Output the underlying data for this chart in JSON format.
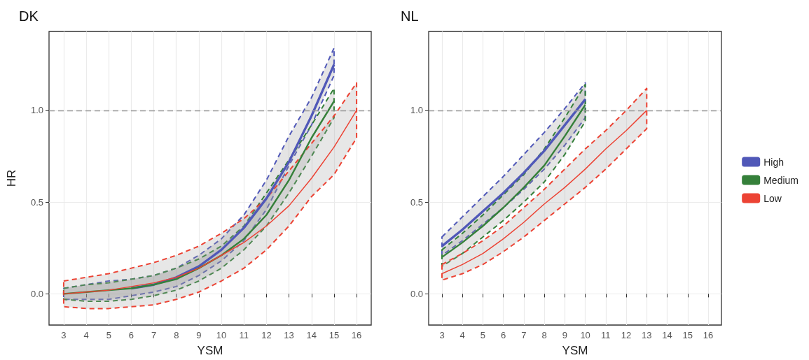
{
  "chart_data": [
    {
      "type": "line",
      "title": "DK",
      "xlabel": "YSM",
      "ylabel": "HR",
      "x": [
        3,
        4,
        5,
        6,
        7,
        8,
        9,
        10,
        11,
        12,
        13,
        14,
        15,
        16
      ],
      "xlim": [
        2.35,
        16.65
      ],
      "ylim": [
        -0.17,
        1.43
      ],
      "xticks": [
        3,
        4,
        5,
        6,
        7,
        8,
        9,
        10,
        11,
        12,
        13,
        14,
        15,
        16
      ],
      "yticks": [
        {
          "value": 0,
          "label": "0.0"
        },
        {
          "value": 0.5,
          "label": "0.5"
        },
        {
          "value": 1,
          "label": "1.0"
        }
      ],
      "grid": true,
      "legend": false,
      "marker": "none",
      "line_style": "solid",
      "ref_lines": [
        {
          "axis": "y",
          "value": 1,
          "color": "#999999",
          "line_style": "dashed"
        }
      ],
      "series": [
        {
          "color": "#5058b8",
          "values": [
            null,
            null,
            null,
            0.03,
            0.05,
            0.09,
            0.15,
            0.24,
            0.36,
            0.52,
            0.72,
            0.97,
            1.25,
            null
          ],
          "lower": [
            -0.03,
            -0.03,
            -0.03,
            -0.01,
            0.01,
            0.04,
            0.1,
            0.18,
            0.29,
            0.46,
            0.7,
            0.92,
            1.19,
            null
          ],
          "upper": [
            0.03,
            0.05,
            0.07,
            0.08,
            0.1,
            0.14,
            0.21,
            0.3,
            0.43,
            0.62,
            0.86,
            1.07,
            1.34,
            null
          ]
        },
        {
          "color": "#35803a",
          "values": [
            0.0,
            0.01,
            0.02,
            0.03,
            0.05,
            0.08,
            0.14,
            0.21,
            0.3,
            0.43,
            0.62,
            0.85,
            1.05,
            null
          ],
          "lower": [
            -0.03,
            -0.04,
            -0.04,
            -0.03,
            -0.01,
            0.02,
            0.07,
            0.14,
            0.24,
            0.37,
            0.55,
            0.75,
            0.96,
            null
          ],
          "upper": [
            0.03,
            0.05,
            0.06,
            0.08,
            0.1,
            0.14,
            0.19,
            0.26,
            0.37,
            0.55,
            0.73,
            0.92,
            1.12,
            null
          ]
        },
        {
          "color": "#ec4334",
          "values": [
            0.0,
            0.01,
            0.02,
            0.04,
            0.06,
            0.09,
            0.14,
            0.21,
            0.28,
            0.37,
            0.48,
            0.63,
            0.8,
            1.0
          ],
          "lower": [
            -0.07,
            -0.08,
            -0.08,
            -0.07,
            -0.06,
            -0.03,
            0.01,
            0.07,
            0.14,
            0.24,
            0.37,
            0.53,
            0.65,
            0.85
          ],
          "upper": [
            0.07,
            0.09,
            0.11,
            0.14,
            0.17,
            0.21,
            0.26,
            0.33,
            0.41,
            0.52,
            0.67,
            0.82,
            0.97,
            1.15
          ]
        }
      ]
    },
    {
      "type": "line",
      "title": "NL",
      "xlabel": "YSM",
      "x": [
        3,
        4,
        5,
        6,
        7,
        8,
        9,
        10,
        11,
        12,
        13
      ],
      "xlim": [
        2.35,
        16.65
      ],
      "ylim": [
        -0.17,
        1.43
      ],
      "xticks": [
        3,
        4,
        5,
        6,
        7,
        8,
        9,
        10,
        11,
        12,
        13,
        14,
        15,
        16
      ],
      "yticks": [
        {
          "value": 0,
          "label": "0.0"
        },
        {
          "value": 0.5,
          "label": "0.5"
        },
        {
          "value": 1,
          "label": "1.0"
        }
      ],
      "grid": true,
      "legend": "right",
      "marker": "none",
      "line_style": "solid",
      "ref_lines": [
        {
          "axis": "y",
          "value": 1,
          "color": "#999999",
          "line_style": "dashed"
        }
      ],
      "series": [
        {
          "name": "High",
          "color": "#5058b8",
          "values": [
            0.26,
            0.35,
            0.45,
            0.55,
            0.66,
            0.78,
            0.92,
            1.06,
            null,
            null,
            null
          ],
          "lower": [
            0.21,
            0.29,
            0.38,
            0.47,
            0.57,
            0.68,
            0.81,
            0.96,
            null,
            null,
            null
          ],
          "upper": [
            0.31,
            0.42,
            0.53,
            0.64,
            0.76,
            0.88,
            1.01,
            1.15,
            null,
            null,
            null
          ]
        },
        {
          "name": "Medium",
          "color": "#35803a",
          "values": [
            0.2,
            0.28,
            0.37,
            0.47,
            0.58,
            0.7,
            0.86,
            1.03,
            null,
            null,
            null
          ],
          "lower": [
            0.15,
            0.22,
            0.31,
            0.4,
            0.5,
            0.61,
            0.76,
            0.94,
            null,
            null,
            null
          ],
          "upper": [
            0.24,
            0.33,
            0.43,
            0.54,
            0.65,
            0.79,
            0.96,
            1.14,
            null,
            null,
            null
          ]
        },
        {
          "name": "Low",
          "color": "#ec4334",
          "values": [
            0.11,
            0.16,
            0.22,
            0.3,
            0.39,
            0.49,
            0.58,
            0.68,
            0.79,
            0.89,
            1.0
          ],
          "lower": [
            0.075,
            0.11,
            0.16,
            0.23,
            0.31,
            0.4,
            0.49,
            0.58,
            0.68,
            0.79,
            0.9
          ],
          "upper": [
            0.16,
            0.22,
            0.29,
            0.37,
            0.47,
            0.57,
            0.68,
            0.79,
            0.89,
            1.0,
            1.12
          ]
        }
      ]
    }
  ]
}
